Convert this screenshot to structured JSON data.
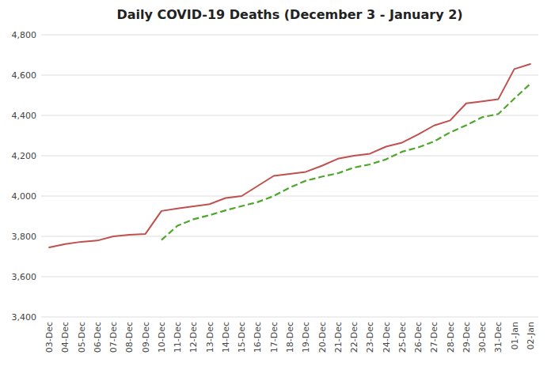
{
  "chart_data": {
    "type": "line",
    "title": "Daily COVID-19 Deaths (December 3 - January 2)",
    "categories": [
      "03-Dec",
      "04-Dec",
      "05-Dec",
      "06-Dec",
      "07-Dec",
      "08-Dec",
      "09-Dec",
      "10-Dec",
      "11-Dec",
      "12-Dec",
      "13-Dec",
      "14-Dec",
      "15-Dec",
      "16-Dec",
      "17-Dec",
      "18-Dec",
      "19-Dec",
      "20-Dec",
      "21-Dec",
      "22-Dec",
      "23-Dec",
      "24-Dec",
      "25-Dec",
      "26-Dec",
      "27-Dec",
      "28-Dec",
      "29-Dec",
      "30-Dec",
      "31-Dec",
      "01-Jan",
      "02-Jan"
    ],
    "series": [
      {
        "color": "#C0504D",
        "line_style": "solid",
        "values": [
          3745,
          3762,
          3773,
          3779,
          3800,
          3808,
          3812,
          3926,
          3938,
          3949,
          3960,
          3990,
          4000,
          4050,
          4100,
          4110,
          4120,
          4150,
          4185,
          4200,
          4210,
          4245,
          4265,
          4305,
          4350,
          4375,
          4460,
          4470,
          4480,
          4630,
          4655
        ]
      },
      {
        "color": "#4EA72A",
        "line_style": "dashed",
        "values": [
          null,
          null,
          null,
          null,
          null,
          null,
          null,
          3782,
          3853,
          3885,
          3905,
          3929,
          3950,
          3970,
          4000,
          4042,
          4076,
          4096,
          4113,
          4141,
          4157,
          4182,
          4220,
          4241,
          4271,
          4316,
          4351,
          4391,
          4407,
          4483,
          4557
        ]
      }
    ],
    "ylim": [
      3400,
      4800
    ],
    "yticks": [
      {
        "value": 3400,
        "label": "3,400"
      },
      {
        "value": 3600,
        "label": "3,600"
      },
      {
        "value": 3800,
        "label": "3,800"
      },
      {
        "value": 4000,
        "label": "4,000"
      },
      {
        "value": 4200,
        "label": "4,200"
      },
      {
        "value": 4400,
        "label": "4,400"
      },
      {
        "value": 4600,
        "label": "4,600"
      },
      {
        "value": 4800,
        "label": "4,800"
      }
    ],
    "grid": true
  }
}
